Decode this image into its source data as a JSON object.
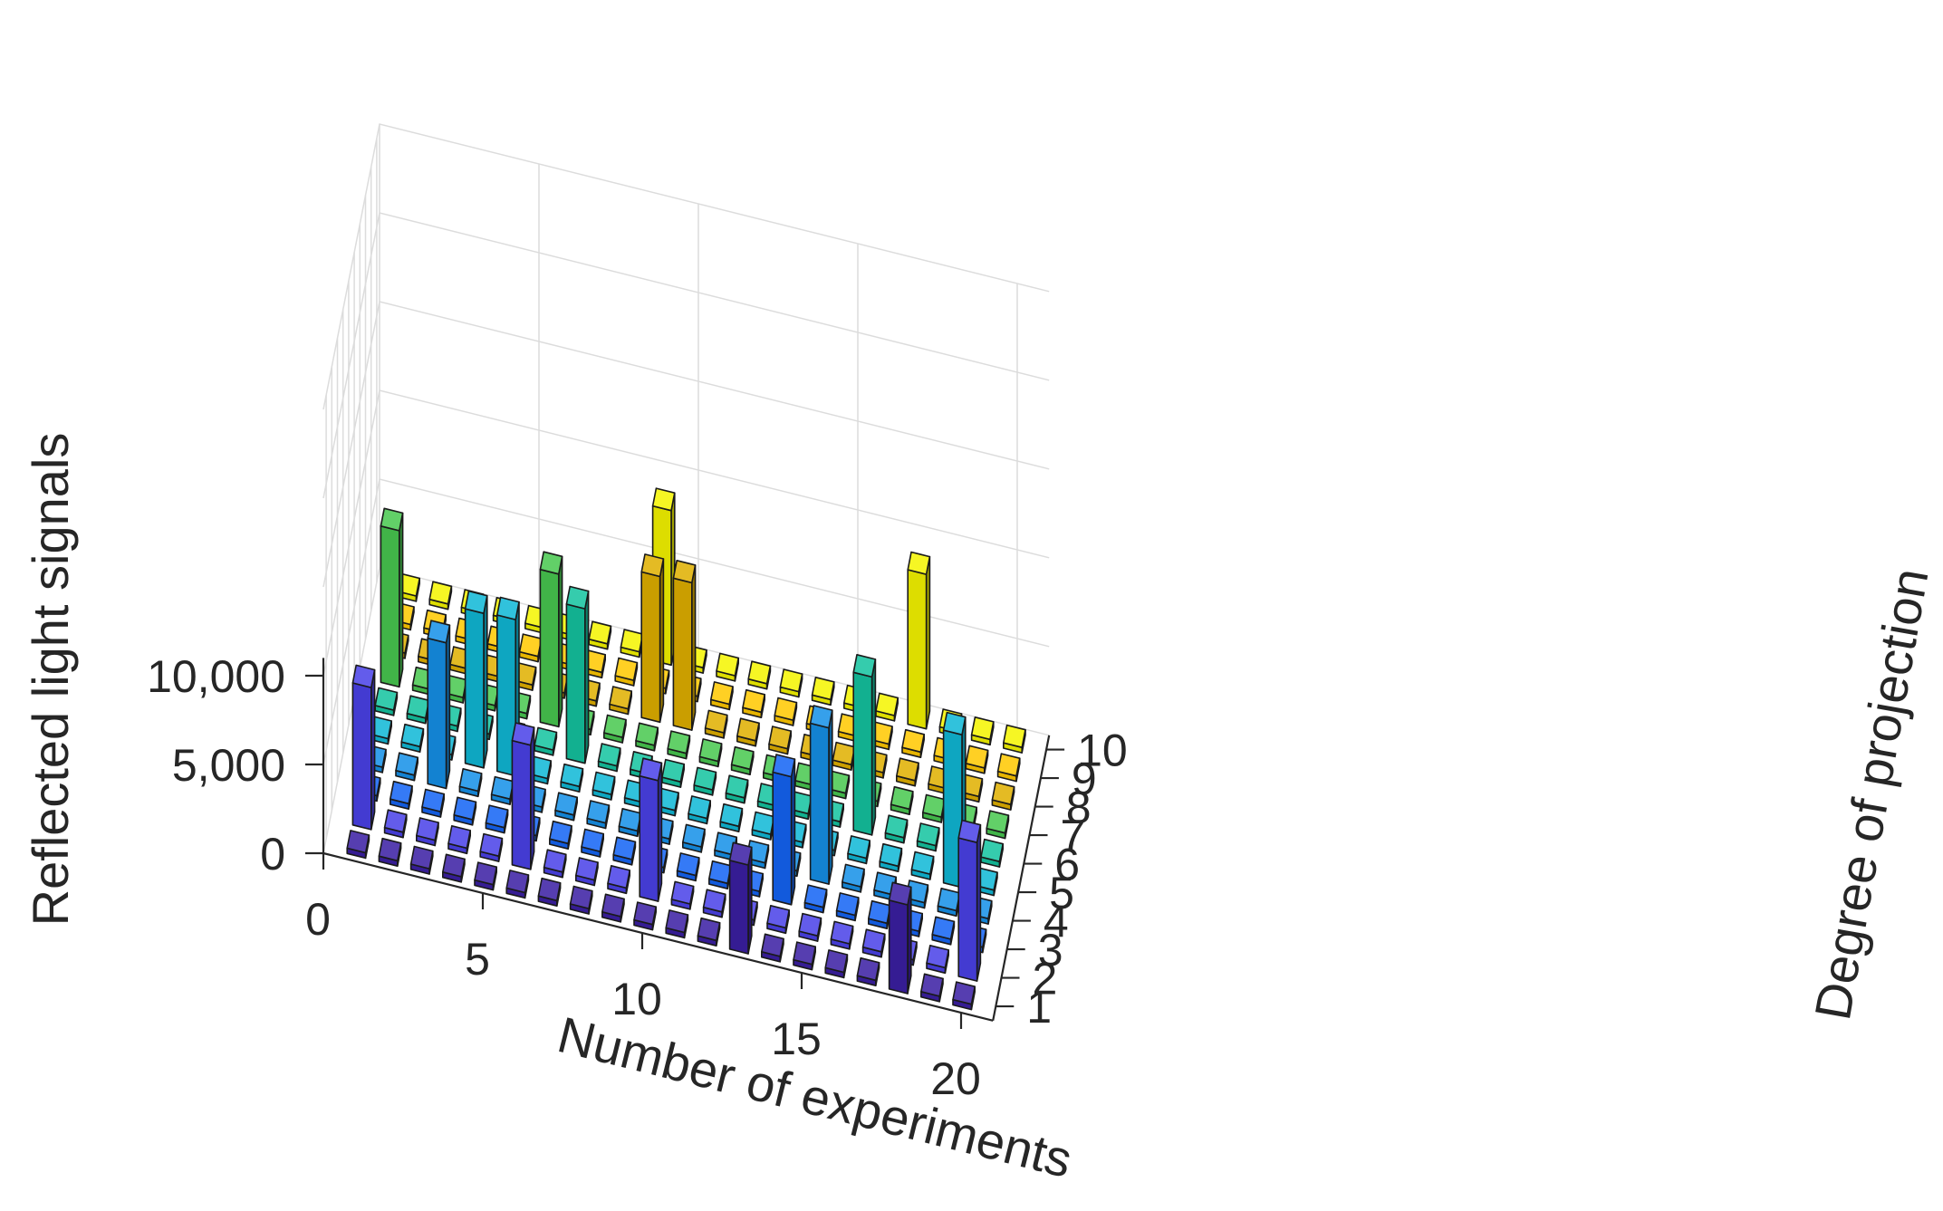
{
  "chart_data": {
    "type": "bar3d",
    "title": "",
    "xlabel": "Number of experiments",
    "ylabel": "Degree of projection",
    "zlabel": "Reflected light signals",
    "x_ticks": [
      "0",
      "5",
      "10",
      "15",
      "20"
    ],
    "y_ticks": [
      "1",
      "2",
      "3",
      "4",
      "5",
      "6",
      "7",
      "8",
      "9",
      "10"
    ],
    "z_ticks": [
      "0",
      "5,000",
      "10,000"
    ],
    "xlim": [
      0,
      21
    ],
    "ylim": [
      0.5,
      10.5
    ],
    "zlim": [
      0,
      25000
    ],
    "grid": true,
    "colors_by_degree": [
      "#3b1fa3",
      "#4a42e8",
      "#1464f4",
      "#1590e8",
      "#0fb8d6",
      "#14c4a0",
      "#48c850",
      "#e0b000",
      "#ffc800",
      "#f5f500"
    ],
    "series": [
      {
        "name": "1",
        "values": [
          300,
          300,
          300,
          300,
          300,
          300,
          300,
          300,
          300,
          300,
          300,
          300,
          5000,
          300,
          300,
          300,
          300,
          5000,
          300,
          300
        ]
      },
      {
        "name": "2",
        "values": [
          8000,
          300,
          300,
          300,
          300,
          7000,
          300,
          300,
          300,
          6800,
          300,
          300,
          300,
          300,
          300,
          300,
          300,
          300,
          300,
          7800
        ]
      },
      {
        "name": "3",
        "values": [
          300,
          300,
          300,
          300,
          300,
          300,
          300,
          300,
          300,
          300,
          300,
          300,
          300,
          7200,
          300,
          300,
          300,
          300,
          300,
          300
        ]
      },
      {
        "name": "4",
        "values": [
          300,
          300,
          8200,
          300,
          300,
          300,
          300,
          300,
          300,
          300,
          300,
          300,
          300,
          300,
          8800,
          300,
          300,
          300,
          300,
          300
        ]
      },
      {
        "name": "5",
        "values": [
          300,
          300,
          300,
          8700,
          8800,
          300,
          300,
          300,
          300,
          300,
          300,
          300,
          300,
          300,
          300,
          300,
          300,
          300,
          8600,
          300
        ]
      },
      {
        "name": "6",
        "values": [
          300,
          300,
          300,
          300,
          300,
          300,
          8700,
          300,
          300,
          300,
          300,
          300,
          300,
          300,
          300,
          8900,
          300,
          300,
          300,
          300
        ]
      },
      {
        "name": "7",
        "values": [
          8800,
          300,
          300,
          300,
          300,
          8600,
          300,
          300,
          300,
          300,
          300,
          300,
          300,
          300,
          300,
          300,
          300,
          300,
          300,
          300
        ]
      },
      {
        "name": "8",
        "values": [
          300,
          300,
          300,
          300,
          300,
          300,
          300,
          300,
          8200,
          8300,
          300,
          300,
          300,
          300,
          300,
          300,
          300,
          300,
          300,
          300
        ]
      },
      {
        "name": "9",
        "values": [
          300,
          300,
          300,
          300,
          300,
          300,
          300,
          300,
          300,
          300,
          300,
          300,
          300,
          300,
          300,
          300,
          300,
          300,
          300,
          300
        ]
      },
      {
        "name": "10",
        "values": [
          300,
          300,
          300,
          300,
          300,
          300,
          300,
          300,
          8700,
          300,
          300,
          300,
          300,
          300,
          300,
          300,
          8700,
          300,
          300,
          300
        ]
      }
    ]
  }
}
